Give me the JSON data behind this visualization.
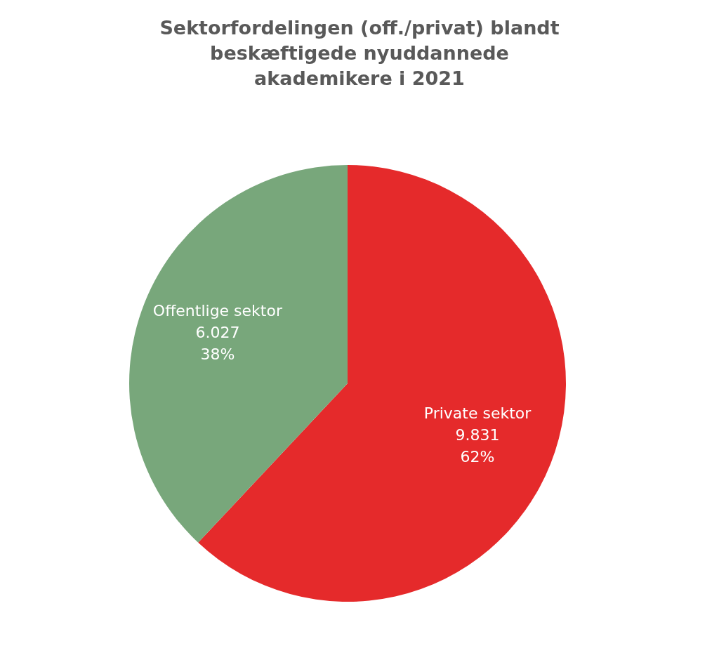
{
  "chart_data": {
    "type": "pie",
    "title": "Sektorfordelingen (off./privat) blandt beskæftigede nyuddannede akademikere i 2021",
    "categories": [
      "Private sektor",
      "Offentlige sektor"
    ],
    "values": [
      9831,
      6027
    ],
    "colors": [
      "#e52a2b",
      "#78a77b"
    ],
    "value_labels": [
      "9.831\n62%",
      "6.027\n38%"
    ]
  }
}
